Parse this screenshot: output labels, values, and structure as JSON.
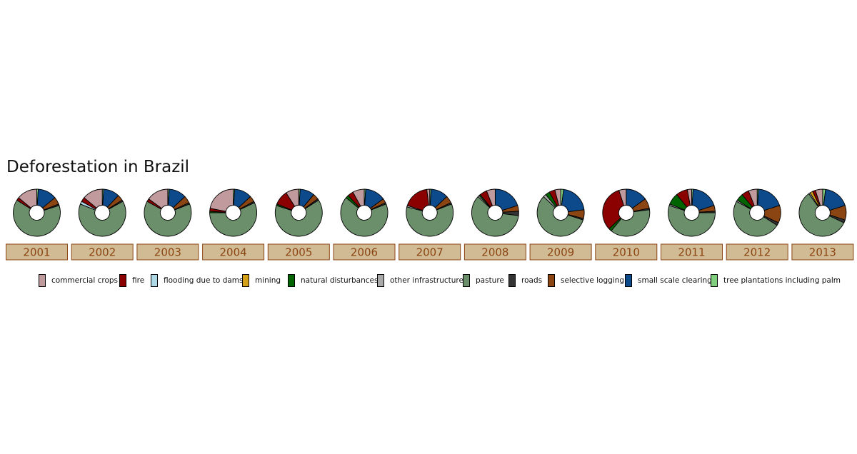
{
  "title": "Deforestation in Brazil",
  "colors": {
    "commercial_crops": "#c09a9d",
    "fire": "#8b0000",
    "flooding_due_to_dams": "#add8e6",
    "mining": "#d4a017",
    "natural_disturbances": "#006400",
    "other_infrastructure": "#a9a9a9",
    "pasture": "#6b8e6b",
    "roads": "#333333",
    "selective_logging": "#8b4513",
    "small_scale_clearing": "#0d4a8c",
    "tree_plantations_including_palm": "#7fcf7f",
    "strip_bg": "#d1bb94",
    "strip_border": "#8b4513",
    "strip_text": "#8b4513"
  },
  "legend": [
    {
      "key": "commercial_crops",
      "label": "commercial crops"
    },
    {
      "key": "fire",
      "label": "fire"
    },
    {
      "key": "flooding_due_to_dams",
      "label": "flooding due to dams"
    },
    {
      "key": "mining",
      "label": "mining"
    },
    {
      "key": "natural_disturbances",
      "label": "natural disturbances"
    },
    {
      "key": "other_infrastructure",
      "label": "other infrastructure"
    },
    {
      "key": "pasture",
      "label": "pasture"
    },
    {
      "key": "roads",
      "label": "roads"
    },
    {
      "key": "selective_logging",
      "label": "selective logging"
    },
    {
      "key": "small_scale_clearing",
      "label": "small scale clearing"
    },
    {
      "key": "tree_plantations_including_palm",
      "label": "tree plantations including palm"
    }
  ],
  "chart_data": {
    "type": "pie",
    "subtype": "donut",
    "facet_by": "year",
    "category_order": [
      "tree_plantations_including_palm",
      "small_scale_clearing",
      "selective_logging",
      "roads",
      "pasture",
      "other_infrastructure",
      "natural_disturbances",
      "mining",
      "flooding_due_to_dams",
      "fire",
      "commercial_crops"
    ],
    "years": [
      {
        "year": "2001",
        "shares": {
          "tree_plantations_including_palm": 1,
          "small_scale_clearing": 13,
          "selective_logging": 5,
          "roads": 1,
          "pasture": 64,
          "other_infrastructure": 0,
          "natural_disturbances": 0,
          "mining": 0,
          "flooding_due_to_dams": 0,
          "fire": 2,
          "commercial_crops": 14
        }
      },
      {
        "year": "2002",
        "shares": {
          "tree_plantations_including_palm": 1,
          "small_scale_clearing": 11,
          "selective_logging": 4,
          "roads": 1,
          "pasture": 64,
          "other_infrastructure": 0,
          "natural_disturbances": 0,
          "mining": 0,
          "flooding_due_to_dams": 2,
          "fire": 3,
          "commercial_crops": 14
        }
      },
      {
        "year": "2003",
        "shares": {
          "tree_plantations_including_palm": 1,
          "small_scale_clearing": 12,
          "selective_logging": 5,
          "roads": 1,
          "pasture": 64,
          "other_infrastructure": 0,
          "natural_disturbances": 0,
          "mining": 0,
          "flooding_due_to_dams": 0,
          "fire": 2,
          "commercial_crops": 15
        }
      },
      {
        "year": "2004",
        "shares": {
          "tree_plantations_including_palm": 1,
          "small_scale_clearing": 12,
          "selective_logging": 4,
          "roads": 1,
          "pasture": 57,
          "other_infrastructure": 0,
          "natural_disturbances": 1,
          "mining": 0,
          "flooding_due_to_dams": 0,
          "fire": 2,
          "commercial_crops": 22
        }
      },
      {
        "year": "2005",
        "shares": {
          "tree_plantations_including_palm": 1,
          "small_scale_clearing": 10,
          "selective_logging": 4,
          "roads": 1,
          "pasture": 64,
          "other_infrastructure": 0,
          "natural_disturbances": 1,
          "mining": 0,
          "flooding_due_to_dams": 0,
          "fire": 10,
          "commercial_crops": 9
        }
      },
      {
        "year": "2006",
        "shares": {
          "tree_plantations_including_palm": 1,
          "small_scale_clearing": 14,
          "selective_logging": 3,
          "roads": 1,
          "pasture": 67,
          "other_infrastructure": 0,
          "natural_disturbances": 2,
          "mining": 0,
          "flooding_due_to_dams": 0,
          "fire": 4,
          "commercial_crops": 8
        }
      },
      {
        "year": "2007",
        "shares": {
          "tree_plantations_including_palm": 1,
          "small_scale_clearing": 12,
          "selective_logging": 5,
          "roads": 1,
          "pasture": 60,
          "other_infrastructure": 1,
          "natural_disturbances": 0,
          "mining": 0,
          "flooding_due_to_dams": 0,
          "fire": 18,
          "commercial_crops": 2
        }
      },
      {
        "year": "2008",
        "shares": {
          "tree_plantations_including_palm": 0,
          "small_scale_clearing": 20,
          "selective_logging": 4,
          "roads": 3,
          "pasture": 60,
          "other_infrastructure": 1,
          "natural_disturbances": 1,
          "mining": 0,
          "flooding_due_to_dams": 0,
          "fire": 5,
          "commercial_crops": 6
        }
      },
      {
        "year": "2009",
        "shares": {
          "tree_plantations_including_palm": 2,
          "small_scale_clearing": 21,
          "selective_logging": 6,
          "roads": 1,
          "pasture": 57,
          "other_infrastructure": 2,
          "natural_disturbances": 3,
          "mining": 0,
          "flooding_due_to_dams": 0,
          "fire": 4,
          "commercial_crops": 4
        }
      },
      {
        "year": "2010",
        "shares": {
          "tree_plantations_including_palm": 0,
          "small_scale_clearing": 15,
          "selective_logging": 7,
          "roads": 1,
          "pasture": 38,
          "other_infrastructure": 0,
          "natural_disturbances": 2,
          "mining": 0,
          "flooding_due_to_dams": 0,
          "fire": 32,
          "commercial_crops": 5
        }
      },
      {
        "year": "2011",
        "shares": {
          "tree_plantations_including_palm": 1,
          "small_scale_clearing": 19,
          "selective_logging": 4,
          "roads": 1,
          "pasture": 55,
          "other_infrastructure": 1,
          "natural_disturbances": 8,
          "mining": 0,
          "flooding_due_to_dams": 0,
          "fire": 8,
          "commercial_crops": 3
        }
      },
      {
        "year": "2012",
        "shares": {
          "tree_plantations_including_palm": 1,
          "small_scale_clearing": 19,
          "selective_logging": 12,
          "roads": 2,
          "pasture": 49,
          "other_infrastructure": 1,
          "natural_disturbances": 5,
          "mining": 0,
          "flooding_due_to_dams": 0,
          "fire": 5,
          "commercial_crops": 6
        }
      },
      {
        "year": "2013",
        "shares": {
          "tree_plantations_including_palm": 2,
          "small_scale_clearing": 18,
          "selective_logging": 10,
          "roads": 2,
          "pasture": 58,
          "other_infrastructure": 1,
          "natural_disturbances": 0,
          "mining": 2,
          "flooding_due_to_dams": 0,
          "fire": 2,
          "commercial_crops": 5
        }
      }
    ]
  }
}
